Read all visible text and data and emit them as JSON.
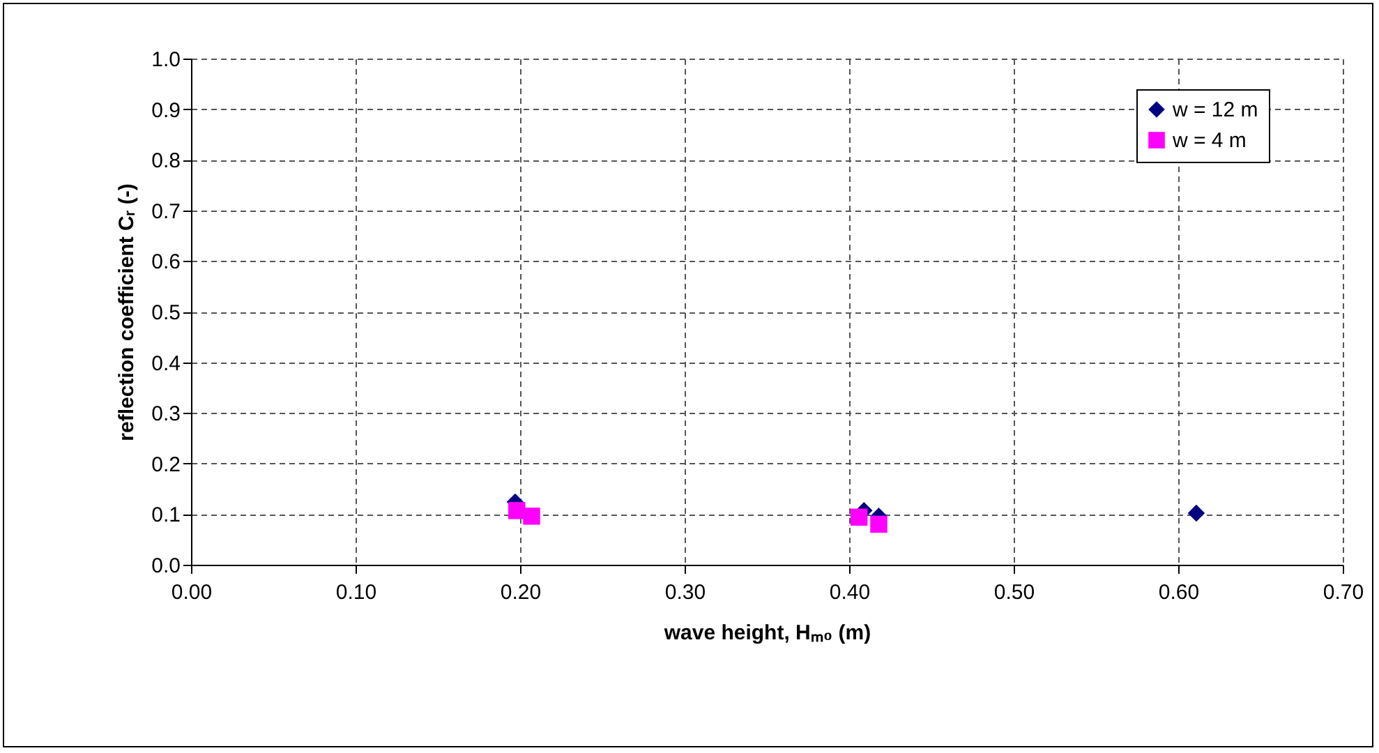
{
  "chart_data": {
    "type": "scatter",
    "xlabel": "wave height, Hₘ₀ (m)",
    "ylabel": "reflection coefficient Cᵣ (-)",
    "xlim": [
      0,
      0.7
    ],
    "ylim": [
      0,
      1.0
    ],
    "xticks": [
      {
        "value": 0,
        "label": "0.00"
      },
      {
        "value": 0.1,
        "label": "0.10"
      },
      {
        "value": 0.2,
        "label": "0.20"
      },
      {
        "value": 0.3,
        "label": "0.30"
      },
      {
        "value": 0.4,
        "label": "0.40"
      },
      {
        "value": 0.5,
        "label": "0.50"
      },
      {
        "value": 0.6,
        "label": "0.60"
      },
      {
        "value": 0.7,
        "label": "0.70"
      }
    ],
    "yticks": [
      {
        "value": 0,
        "label": "0.0"
      },
      {
        "value": 0.1,
        "label": "0.1"
      },
      {
        "value": 0.2,
        "label": "0.2"
      },
      {
        "value": 0.3,
        "label": "0.3"
      },
      {
        "value": 0.4,
        "label": "0.4"
      },
      {
        "value": 0.5,
        "label": "0.5"
      },
      {
        "value": 0.6,
        "label": "0.6"
      },
      {
        "value": 0.7,
        "label": "0.7"
      },
      {
        "value": 0.8,
        "label": "0.8"
      },
      {
        "value": 0.9,
        "label": "0.9"
      },
      {
        "value": 1.0,
        "label": "1.0"
      }
    ],
    "grid": true,
    "legend": "top right",
    "series": [
      {
        "name": "w = 12 m",
        "color": "#000080",
        "marker": "diamond",
        "x": [
          0.197,
          0.409,
          0.418,
          0.611
        ],
        "values": [
          0.124,
          0.107,
          0.096,
          0.102
        ]
      },
      {
        "name": "w = 4 m",
        "color": "#ff00ff",
        "marker": "square",
        "x": [
          0.198,
          0.207,
          0.406,
          0.418
        ],
        "values": [
          0.107,
          0.096,
          0.094,
          0.08
        ]
      }
    ]
  }
}
